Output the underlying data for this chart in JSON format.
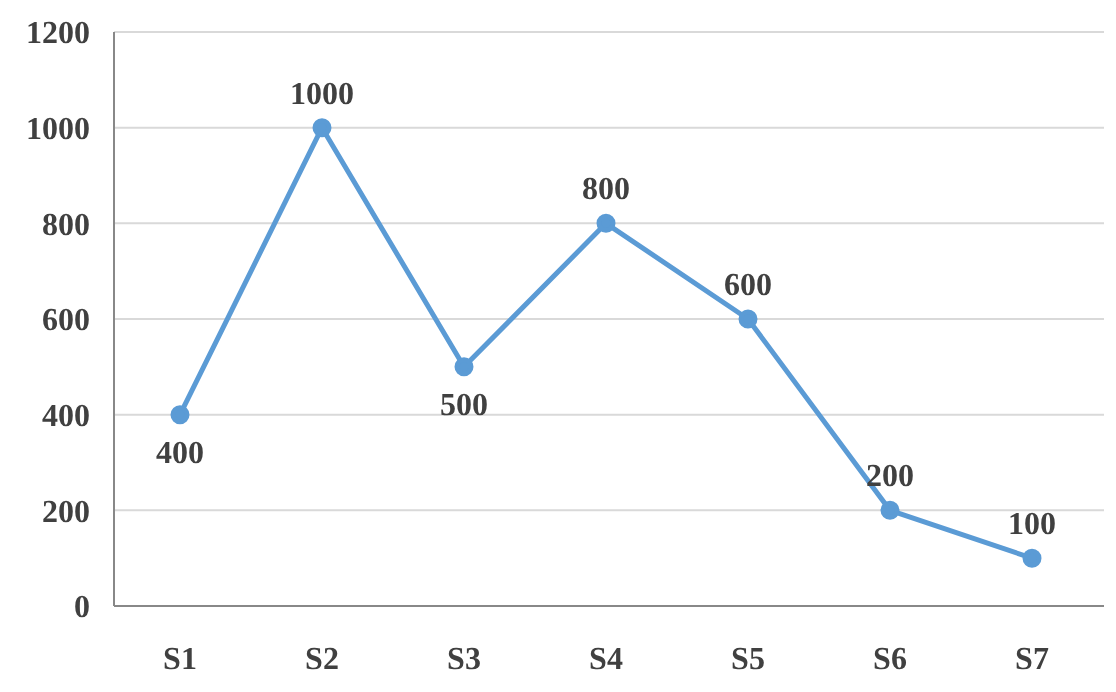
{
  "chart_data": {
    "type": "line",
    "categories": [
      "S1",
      "S2",
      "S3",
      "S4",
      "S5",
      "S6",
      "S7"
    ],
    "series": [
      {
        "color": "#5b9bd5",
        "values": [
          400,
          1000,
          500,
          800,
          600,
          200,
          100
        ]
      }
    ],
    "ylim": [
      0,
      1200
    ],
    "yticks": [
      0,
      200,
      400,
      600,
      800,
      1000,
      1200
    ],
    "grid": "y",
    "legend": false,
    "marker": "circle",
    "line_style": "solid",
    "data_labels": true
  }
}
